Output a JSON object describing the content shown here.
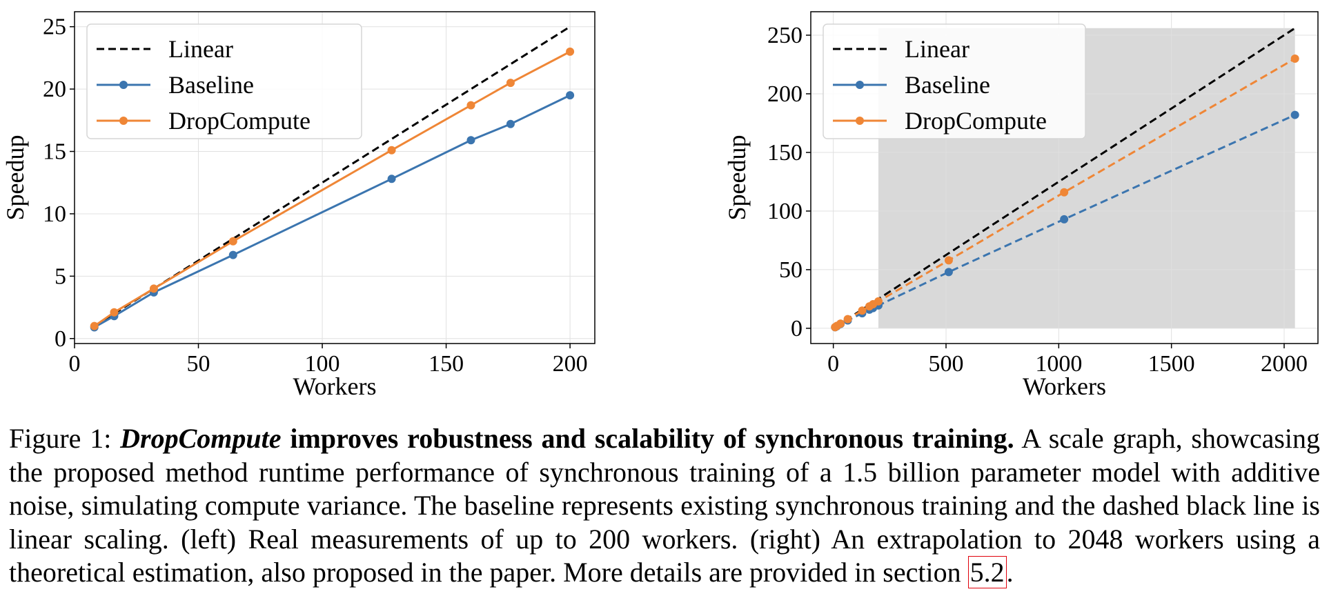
{
  "caption": {
    "figure_label": "Figure 1:",
    "method_name": "DropCompute",
    "headline": "improves robustness and scalability of synchronous training.",
    "body": "A scale graph, showcasing the proposed method runtime performance of synchronous training of a 1.5 billion parameter model with additive noise, simulating compute variance. The baseline represents existing synchronous training and the dashed black line is linear scaling. (left) Real measurements of up to 200 workers. (right) An extrapolation to 2048 workers using a theoretical estimation, also proposed in the paper. More details are provided in section",
    "section_ref": "5.2",
    "end": "."
  },
  "colors": {
    "linear": "#000000",
    "baseline": "#3b75af",
    "dropcompute": "#ef8636",
    "shade": "#d9d9d9",
    "grid": "#e0e0e0"
  },
  "chart_data": [
    {
      "type": "line",
      "xlabel": "Workers",
      "ylabel": "Speedup",
      "xlim": [
        0,
        210
      ],
      "ylim": [
        -0.4,
        26.2
      ],
      "xticks": [
        0,
        50,
        100,
        150,
        200
      ],
      "yticks": [
        0,
        5,
        10,
        15,
        20,
        25
      ],
      "grid": true,
      "legend_position": "top-left",
      "series": [
        {
          "name": "Linear",
          "style": "dashed",
          "markers": false,
          "color": "#000000",
          "x": [
            8,
            200
          ],
          "y": [
            1,
            25
          ]
        },
        {
          "name": "Baseline",
          "style": "solid",
          "markers": true,
          "color": "#3b75af",
          "x": [
            8,
            16,
            32,
            64,
            128,
            160,
            176,
            200
          ],
          "y": [
            0.9,
            1.8,
            3.7,
            6.7,
            12.8,
            15.9,
            17.2,
            19.5
          ]
        },
        {
          "name": "DropCompute",
          "style": "solid",
          "markers": true,
          "color": "#ef8636",
          "x": [
            8,
            16,
            32,
            64,
            128,
            160,
            176,
            200
          ],
          "y": [
            1.0,
            2.1,
            4.0,
            7.8,
            15.1,
            18.7,
            20.5,
            23.0
          ]
        }
      ]
    },
    {
      "type": "line",
      "xlabel": "Workers",
      "ylabel": "Speedup",
      "xlim": [
        -100,
        2150
      ],
      "ylim": [
        -13,
        270
      ],
      "xticks": [
        0,
        500,
        1000,
        1500,
        2000
      ],
      "yticks": [
        0,
        50,
        100,
        150,
        200,
        250
      ],
      "grid": true,
      "legend_position": "top-left",
      "shaded_region": {
        "x": [
          200,
          2048
        ],
        "y": [
          0,
          256
        ]
      },
      "series": [
        {
          "name": "Linear",
          "style": "dashed",
          "markers": false,
          "color": "#000000",
          "x": [
            8,
            2048
          ],
          "y": [
            1,
            256
          ]
        },
        {
          "name": "Baseline",
          "style": "dashed",
          "markers": true,
          "color": "#3b75af",
          "x": [
            8,
            16,
            32,
            64,
            128,
            160,
            176,
            200,
            512,
            1024,
            2048
          ],
          "y": [
            0.9,
            1.8,
            3.7,
            6.7,
            12.8,
            15.9,
            17.2,
            19.5,
            48,
            93,
            182
          ]
        },
        {
          "name": "DropCompute",
          "style": "dashed",
          "markers": true,
          "color": "#ef8636",
          "x": [
            8,
            16,
            32,
            64,
            128,
            160,
            176,
            200,
            512,
            1024,
            2048
          ],
          "y": [
            1.0,
            2.1,
            4.0,
            7.8,
            15.1,
            18.7,
            20.5,
            23.0,
            58,
            116,
            230
          ]
        }
      ]
    }
  ]
}
